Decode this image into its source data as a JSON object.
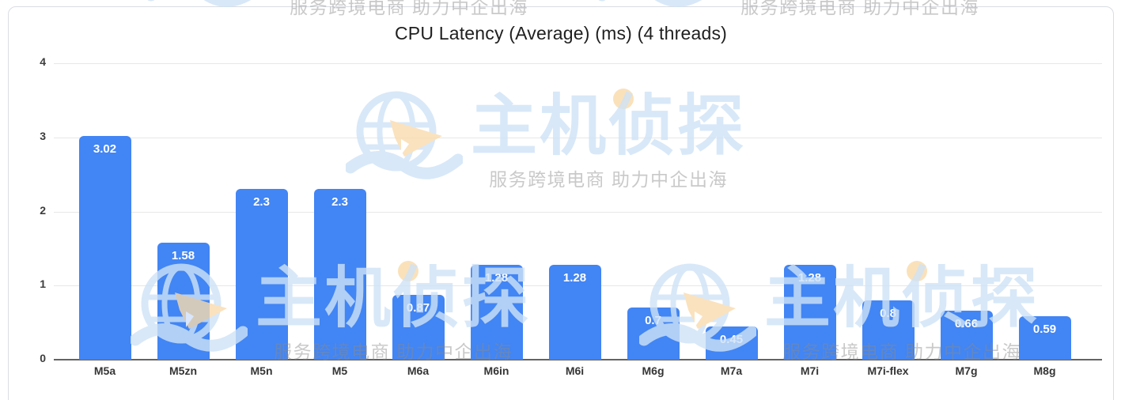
{
  "chart_data": {
    "type": "bar",
    "title": "CPU Latency (Average) (ms) (4 threads)",
    "categories": [
      "M5a",
      "M5zn",
      "M5n",
      "M5",
      "M6a",
      "M6in",
      "M6i",
      "M6g",
      "M7a",
      "M7i",
      "M7i-flex",
      "M7g",
      "M8g"
    ],
    "values": [
      3.02,
      1.58,
      2.3,
      2.3,
      0.87,
      1.28,
      1.28,
      0.7,
      0.45,
      1.28,
      0.8,
      0.66,
      0.59
    ],
    "xlabel": "",
    "ylabel": "",
    "ylim": [
      0,
      4
    ],
    "yticks": [
      0,
      1,
      2,
      3,
      4
    ],
    "grid": true,
    "legend": "none",
    "bar_color": "#4285f4",
    "value_label_color": "#ffffff"
  },
  "watermark": {
    "brand": "主机侦探",
    "tagline": "服务跨境电商  助力中企出海",
    "brand_color": "#cfe3f7",
    "tagline_color": "#8a8a8a",
    "accent_color": "#f9dcae",
    "icon": "globe-paper-plane-wave-logo"
  }
}
